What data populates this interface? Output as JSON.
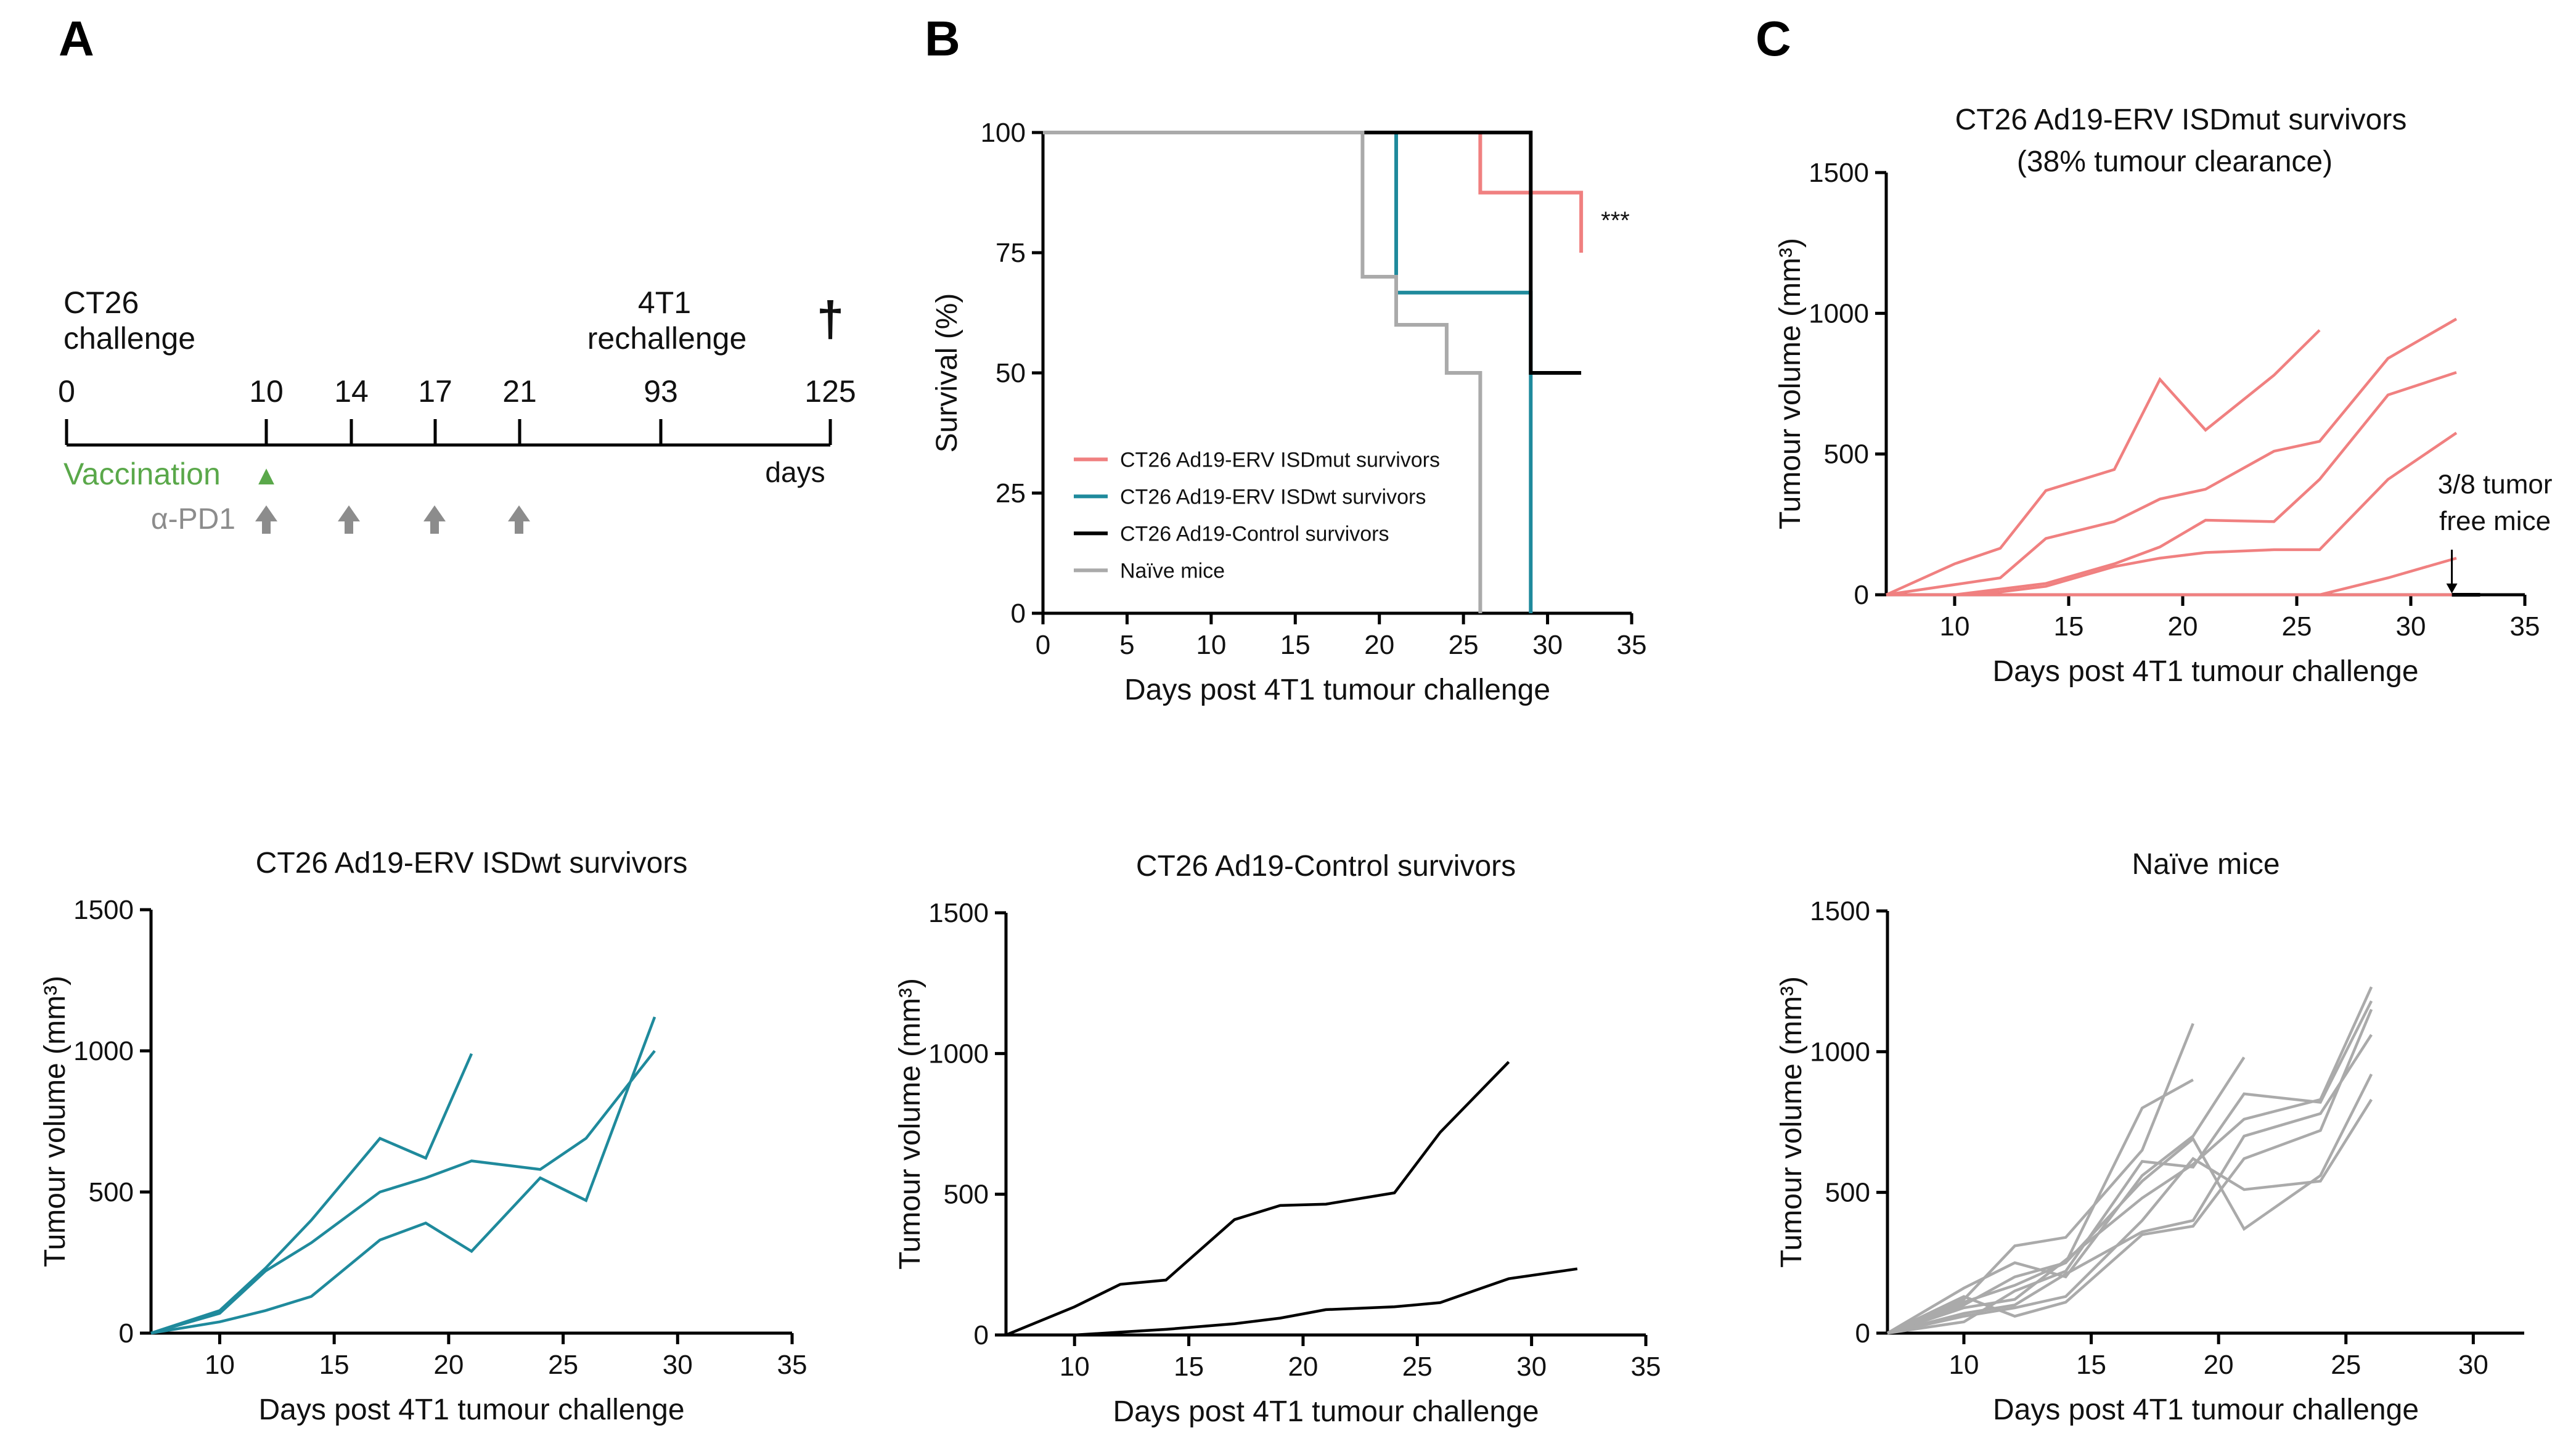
{
  "panel_labels": {
    "a": "A",
    "b": "B",
    "c": "C"
  },
  "colors": {
    "mut": "#f08080",
    "wt": "#1f8a9c",
    "control": "#000000",
    "naive": "#aaaaaa",
    "vaccination": "#5aa84a",
    "pd1": "#8c8c8c"
  },
  "timeline": {
    "ticks": [
      "0",
      "10",
      "14",
      "17",
      "21",
      "93",
      "125"
    ],
    "challenge_line1": "CT26",
    "challenge_line2": "challenge",
    "rechallenge_line1": "4T1",
    "rechallenge_line2": "rechallenge",
    "end_marker": "†",
    "vaccination_label": "Vaccination",
    "vaccination_marker": "▲",
    "pd1_label": "α-PD1",
    "days_label": "days"
  },
  "chart_data": [
    {
      "id": "B",
      "type": "line",
      "subtype": "kaplan-meier",
      "title": "",
      "xlabel": "Days post 4T1 tumour challenge",
      "ylabel": "Survival (%)",
      "xlim": [
        0,
        35
      ],
      "ylim": [
        0,
        100
      ],
      "xticks": [
        "0",
        "5",
        "10",
        "15",
        "20",
        "25",
        "30",
        "35"
      ],
      "yticks": [
        "0",
        "25",
        "50",
        "75",
        "100"
      ],
      "annotation": "***",
      "series": [
        {
          "name": "CT26 Ad19-ERV ISDmut survivors",
          "color": "#f08080",
          "points": [
            [
              0,
              100
            ],
            [
              26,
              100
            ],
            [
              26,
              87.5
            ],
            [
              32,
              87.5
            ],
            [
              32,
              75
            ]
          ]
        },
        {
          "name": "CT26 Ad19-ERV ISDwt survivors",
          "color": "#1f8a9c",
          "points": [
            [
              0,
              100
            ],
            [
              21,
              100
            ],
            [
              21,
              66.7
            ],
            [
              29,
              66.7
            ],
            [
              29,
              0
            ]
          ]
        },
        {
          "name": "CT26 Ad19-Control survivors",
          "color": "#000000",
          "points": [
            [
              0,
              100
            ],
            [
              29,
              100
            ],
            [
              29,
              50
            ],
            [
              32,
              50
            ]
          ]
        },
        {
          "name": "Naïve mice",
          "color": "#aaaaaa",
          "points": [
            [
              0,
              100
            ],
            [
              19,
              100
            ],
            [
              19,
              70
            ],
            [
              21,
              70
            ],
            [
              21,
              60
            ],
            [
              24,
              60
            ],
            [
              24,
              50
            ],
            [
              26,
              50
            ],
            [
              26,
              0
            ]
          ]
        }
      ]
    },
    {
      "id": "C1",
      "type": "line",
      "title": "CT26 Ad19-ERV ISDmut survivors",
      "subtitle": "(38% tumour clearance)",
      "xlabel": "Days post 4T1 tumour challenge",
      "ylabel": "Tumour volume (mm³)",
      "xlim": [
        7,
        35
      ],
      "ylim": [
        0,
        1500
      ],
      "xticks": [
        "10",
        "15",
        "20",
        "25",
        "30",
        "35"
      ],
      "yticks": [
        "0",
        "500",
        "1000",
        "1500"
      ],
      "annotation": "3/8 tumor free mice",
      "color": "#f08080",
      "series": [
        {
          "points": [
            [
              7,
              0
            ],
            [
              10,
              110
            ],
            [
              12,
              165
            ],
            [
              14,
              370
            ],
            [
              17,
              445
            ],
            [
              19,
              765
            ],
            [
              21,
              585
            ],
            [
              24,
              780
            ],
            [
              26,
              940
            ]
          ]
        },
        {
          "points": [
            [
              7,
              0
            ],
            [
              12,
              60
            ],
            [
              14,
              200
            ],
            [
              17,
              260
            ],
            [
              19,
              340
            ],
            [
              21,
              375
            ],
            [
              24,
              510
            ],
            [
              26,
              545
            ],
            [
              29,
              840
            ],
            [
              32,
              980
            ]
          ]
        },
        {
          "points": [
            [
              10,
              0
            ],
            [
              12,
              20
            ],
            [
              14,
              40
            ],
            [
              17,
              110
            ],
            [
              19,
              170
            ],
            [
              21,
              265
            ],
            [
              24,
              260
            ],
            [
              26,
              410
            ],
            [
              29,
              710
            ],
            [
              32,
              790
            ]
          ]
        },
        {
          "points": [
            [
              10,
              0
            ],
            [
              12,
              10
            ],
            [
              14,
              30
            ],
            [
              17,
              100
            ],
            [
              19,
              130
            ],
            [
              21,
              150
            ],
            [
              24,
              160
            ],
            [
              26,
              160
            ],
            [
              29,
              410
            ],
            [
              32,
              575
            ]
          ]
        },
        {
          "points": [
            [
              12,
              0
            ],
            [
              14,
              0
            ],
            [
              26,
              0
            ],
            [
              29,
              60
            ],
            [
              32,
              130
            ]
          ]
        },
        {
          "points": [
            [
              7,
              0
            ],
            [
              32,
              0
            ]
          ]
        },
        {
          "points": [
            [
              7,
              0
            ],
            [
              32,
              0
            ]
          ]
        },
        {
          "points": [
            [
              7,
              0
            ],
            [
              32,
              0
            ]
          ]
        }
      ]
    },
    {
      "id": "C2",
      "type": "line",
      "title": "CT26 Ad19-ERV ISDwt survivors",
      "xlabel": "Days post 4T1 tumour challenge",
      "ylabel": "Tumour volume (mm³)",
      "xlim": [
        7,
        35
      ],
      "ylim": [
        0,
        1500
      ],
      "xticks": [
        "10",
        "15",
        "20",
        "25",
        "30",
        "35"
      ],
      "yticks": [
        "0",
        "500",
        "1000",
        "1500"
      ],
      "color": "#1f8a9c",
      "series": [
        {
          "points": [
            [
              7,
              0
            ],
            [
              10,
              80
            ],
            [
              12,
              230
            ],
            [
              14,
              400
            ],
            [
              17,
              690
            ],
            [
              19,
              620
            ],
            [
              21,
              990
            ]
          ]
        },
        {
          "points": [
            [
              7,
              0
            ],
            [
              10,
              70
            ],
            [
              12,
              220
            ],
            [
              14,
              320
            ],
            [
              17,
              500
            ],
            [
              19,
              550
            ],
            [
              21,
              610
            ],
            [
              24,
              580
            ],
            [
              26,
              690
            ],
            [
              29,
              1000
            ]
          ]
        },
        {
          "points": [
            [
              7,
              0
            ],
            [
              10,
              40
            ],
            [
              12,
              80
            ],
            [
              14,
              130
            ],
            [
              17,
              330
            ],
            [
              19,
              390
            ],
            [
              21,
              290
            ],
            [
              24,
              550
            ],
            [
              26,
              470
            ],
            [
              29,
              1120
            ]
          ]
        }
      ]
    },
    {
      "id": "C3",
      "type": "line",
      "title": "CT26 Ad19-Control survivors",
      "xlabel": "Days post 4T1 tumour challenge",
      "ylabel": "Tumour volume (mm³)",
      "xlim": [
        7,
        35
      ],
      "ylim": [
        0,
        1500
      ],
      "xticks": [
        "10",
        "15",
        "20",
        "25",
        "30",
        "35"
      ],
      "yticks": [
        "0",
        "500",
        "1000",
        "1500"
      ],
      "color": "#000000",
      "series": [
        {
          "points": [
            [
              7,
              0
            ],
            [
              10,
              100
            ],
            [
              12,
              180
            ],
            [
              14,
              195
            ],
            [
              17,
              410
            ],
            [
              19,
              460
            ],
            [
              21,
              465
            ],
            [
              24,
              505
            ],
            [
              26,
              720
            ],
            [
              29,
              970
            ]
          ]
        },
        {
          "points": [
            [
              10,
              0
            ],
            [
              12,
              10
            ],
            [
              14,
              20
            ],
            [
              17,
              40
            ],
            [
              19,
              60
            ],
            [
              21,
              90
            ],
            [
              24,
              100
            ],
            [
              26,
              115
            ],
            [
              29,
              200
            ],
            [
              32,
              235
            ]
          ]
        }
      ]
    },
    {
      "id": "C4",
      "type": "line",
      "title": "Naïve mice",
      "xlabel": "Days post 4T1 tumour challenge",
      "ylabel": "Tumour volume (mm³)",
      "xlim": [
        7,
        32
      ],
      "ylim": [
        0,
        1500
      ],
      "xticks": [
        "10",
        "15",
        "20",
        "25",
        "30"
      ],
      "yticks": [
        "0",
        "500",
        "1000",
        "1500"
      ],
      "color": "#aaaaaa",
      "series": [
        {
          "points": [
            [
              7,
              0
            ],
            [
              10,
              120
            ],
            [
              12,
              310
            ],
            [
              14,
              340
            ],
            [
              17,
              650
            ],
            [
              19,
              1100
            ]
          ]
        },
        {
          "points": [
            [
              7,
              0
            ],
            [
              10,
              100
            ],
            [
              12,
              200
            ],
            [
              14,
              250
            ],
            [
              17,
              800
            ],
            [
              19,
              900
            ]
          ]
        },
        {
          "points": [
            [
              7,
              0
            ],
            [
              10,
              160
            ],
            [
              12,
              250
            ],
            [
              14,
              200
            ],
            [
              17,
              560
            ],
            [
              19,
              700
            ],
            [
              21,
              980
            ]
          ]
        },
        {
          "points": [
            [
              7,
              0
            ],
            [
              10,
              90
            ],
            [
              12,
              120
            ],
            [
              14,
              260
            ],
            [
              17,
              480
            ],
            [
              19,
              600
            ],
            [
              21,
              760
            ],
            [
              24,
              830
            ],
            [
              26,
              1230
            ]
          ]
        },
        {
          "points": [
            [
              7,
              0
            ],
            [
              10,
              60
            ],
            [
              12,
              90
            ],
            [
              14,
              130
            ],
            [
              17,
              400
            ],
            [
              19,
              620
            ],
            [
              21,
              510
            ],
            [
              24,
              540
            ],
            [
              26,
              830
            ]
          ]
        },
        {
          "points": [
            [
              7,
              0
            ],
            [
              10,
              40
            ],
            [
              12,
              150
            ],
            [
              14,
              220
            ],
            [
              17,
              610
            ],
            [
              19,
              590
            ],
            [
              21,
              850
            ],
            [
              24,
              820
            ],
            [
              26,
              1180
            ]
          ]
        },
        {
          "points": [
            [
              7,
              0
            ],
            [
              10,
              70
            ],
            [
              12,
              100
            ],
            [
              14,
              210
            ],
            [
              17,
              360
            ],
            [
              19,
              400
            ],
            [
              21,
              700
            ],
            [
              24,
              780
            ],
            [
              26,
              1060
            ]
          ]
        },
        {
          "points": [
            [
              7,
              0
            ],
            [
              10,
              110
            ],
            [
              12,
              170
            ],
            [
              14,
              250
            ],
            [
              17,
              540
            ],
            [
              19,
              690
            ],
            [
              21,
              370
            ],
            [
              24,
              560
            ],
            [
              26,
              920
            ]
          ]
        },
        {
          "points": [
            [
              7,
              0
            ],
            [
              10,
              130
            ],
            [
              12,
              60
            ],
            [
              14,
              110
            ],
            [
              17,
              350
            ],
            [
              19,
              380
            ],
            [
              21,
              620
            ],
            [
              24,
              720
            ],
            [
              26,
              1150
            ]
          ]
        }
      ]
    }
  ]
}
